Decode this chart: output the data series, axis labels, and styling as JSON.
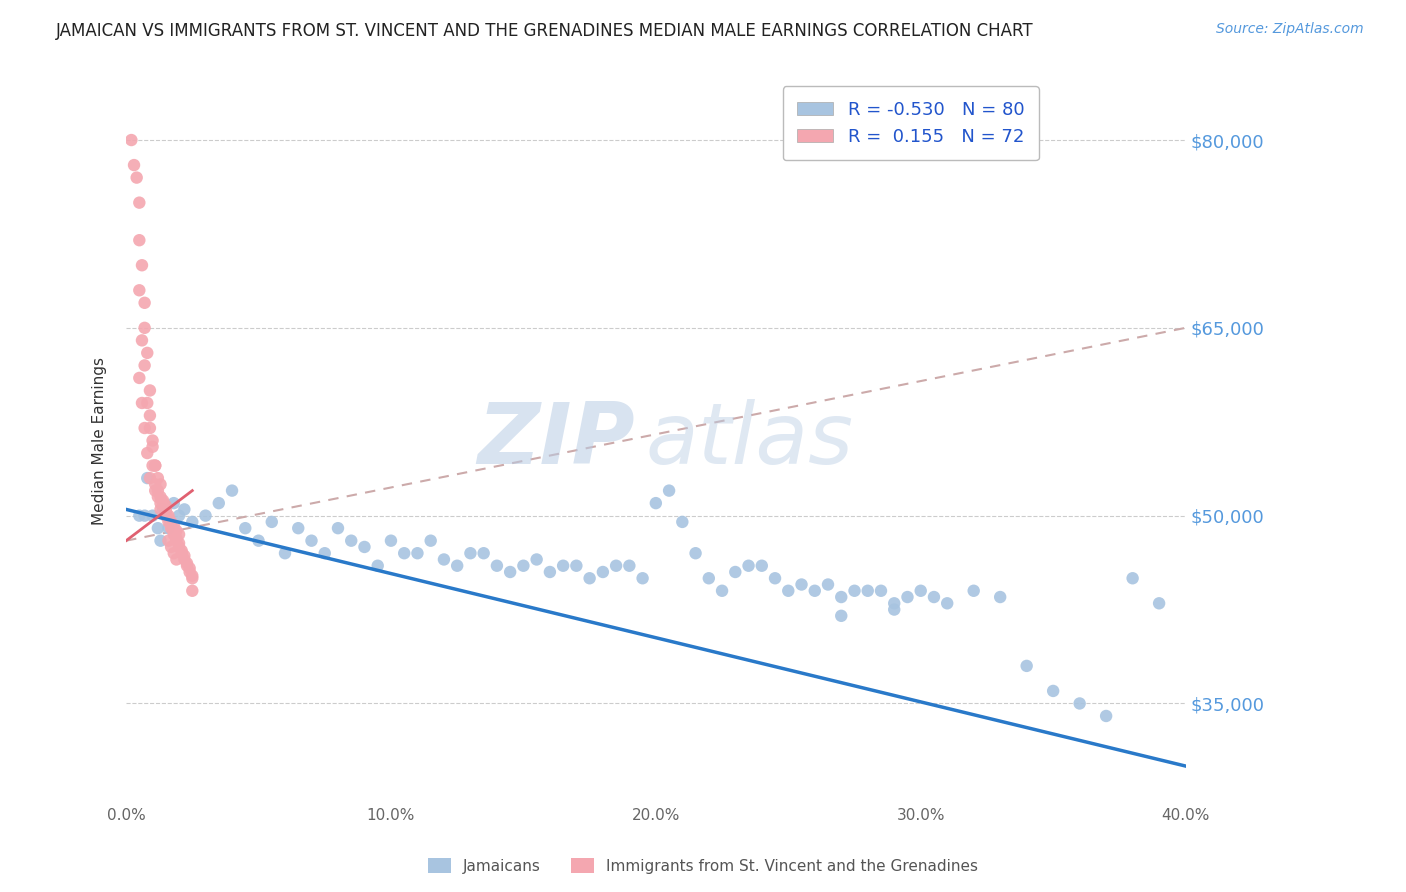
{
  "title": "JAMAICAN VS IMMIGRANTS FROM ST. VINCENT AND THE GRENADINES MEDIAN MALE EARNINGS CORRELATION CHART",
  "source": "Source: ZipAtlas.com",
  "ylabel": "Median Male Earnings",
  "xlim": [
    0.0,
    0.4
  ],
  "ylim": [
    27000,
    85000
  ],
  "yticks": [
    35000,
    50000,
    65000,
    80000
  ],
  "ytick_labels": [
    "$35,000",
    "$50,000",
    "$65,000",
    "$80,000"
  ],
  "xticks": [
    0.0,
    0.1,
    0.2,
    0.3,
    0.4
  ],
  "xtick_labels": [
    "0.0%",
    "10.0%",
    "20.0%",
    "30.0%",
    "40.0%"
  ],
  "blue_R": -0.53,
  "blue_N": 80,
  "pink_R": 0.155,
  "pink_N": 72,
  "blue_color": "#a8c4e0",
  "pink_color": "#f4a7b0",
  "trend_blue_color": "#2979c9",
  "trend_pink_color": "#e06070",
  "trend_pink_dash_color": "#ccaaaa",
  "watermark_zip": "ZIP",
  "watermark_atlas": "atlas",
  "watermark_color": "#ccd8e8",
  "legend_label_blue": "Jamaicans",
  "legend_label_pink": "Immigrants from St. Vincent and the Grenadines",
  "blue_x": [
    0.005,
    0.007,
    0.008,
    0.01,
    0.012,
    0.013,
    0.014,
    0.015,
    0.016,
    0.018,
    0.02,
    0.022,
    0.025,
    0.03,
    0.035,
    0.04,
    0.045,
    0.05,
    0.055,
    0.06,
    0.065,
    0.07,
    0.075,
    0.08,
    0.085,
    0.09,
    0.095,
    0.1,
    0.105,
    0.11,
    0.115,
    0.12,
    0.125,
    0.13,
    0.135,
    0.14,
    0.145,
    0.15,
    0.155,
    0.16,
    0.165,
    0.17,
    0.175,
    0.18,
    0.185,
    0.19,
    0.195,
    0.2,
    0.205,
    0.21,
    0.215,
    0.22,
    0.225,
    0.23,
    0.235,
    0.24,
    0.245,
    0.25,
    0.255,
    0.26,
    0.265,
    0.27,
    0.275,
    0.28,
    0.285,
    0.29,
    0.295,
    0.3,
    0.305,
    0.31,
    0.32,
    0.33,
    0.34,
    0.35,
    0.36,
    0.37,
    0.38,
    0.39,
    0.27,
    0.29
  ],
  "blue_y": [
    50000,
    50000,
    53000,
    50000,
    49000,
    48000,
    50500,
    50000,
    49000,
    51000,
    50000,
    50500,
    49500,
    50000,
    51000,
    52000,
    49000,
    48000,
    49500,
    47000,
    49000,
    48000,
    47000,
    49000,
    48000,
    47500,
    46000,
    48000,
    47000,
    47000,
    48000,
    46500,
    46000,
    47000,
    47000,
    46000,
    45500,
    46000,
    46500,
    45500,
    46000,
    46000,
    45000,
    45500,
    46000,
    46000,
    45000,
    51000,
    52000,
    49500,
    47000,
    45000,
    44000,
    45500,
    46000,
    46000,
    45000,
    44000,
    44500,
    44000,
    44500,
    43500,
    44000,
    44000,
    44000,
    43000,
    43500,
    44000,
    43500,
    43000,
    44000,
    43500,
    38000,
    36000,
    35000,
    34000,
    45000,
    43000,
    42000,
    42500
  ],
  "pink_x": [
    0.002,
    0.003,
    0.004,
    0.005,
    0.005,
    0.006,
    0.007,
    0.007,
    0.008,
    0.009,
    0.009,
    0.01,
    0.011,
    0.011,
    0.012,
    0.013,
    0.013,
    0.014,
    0.015,
    0.015,
    0.016,
    0.016,
    0.017,
    0.017,
    0.018,
    0.018,
    0.019,
    0.019,
    0.02,
    0.02,
    0.021,
    0.021,
    0.022,
    0.022,
    0.023,
    0.023,
    0.024,
    0.024,
    0.025,
    0.025,
    0.016,
    0.017,
    0.018,
    0.019,
    0.02,
    0.015,
    0.014,
    0.013,
    0.012,
    0.011,
    0.008,
    0.009,
    0.01,
    0.007,
    0.006,
    0.005,
    0.016,
    0.017,
    0.018,
    0.019,
    0.014,
    0.015,
    0.013,
    0.012,
    0.011,
    0.01,
    0.009,
    0.008,
    0.007,
    0.006,
    0.005,
    0.025
  ],
  "pink_y": [
    80000,
    78000,
    77000,
    75000,
    72000,
    70000,
    67000,
    65000,
    63000,
    60000,
    58000,
    56000,
    54000,
    52500,
    52000,
    51500,
    51000,
    51000,
    50500,
    50000,
    49800,
    49500,
    49200,
    49000,
    48800,
    48500,
    48200,
    48000,
    47800,
    47500,
    47200,
    47000,
    46800,
    46500,
    46200,
    46000,
    45800,
    45500,
    45200,
    45000,
    50000,
    49500,
    49200,
    48800,
    48500,
    50800,
    51200,
    50500,
    51500,
    52000,
    55000,
    53000,
    54000,
    57000,
    59000,
    61000,
    48000,
    47500,
    47000,
    46500,
    51000,
    50200,
    52500,
    53000,
    54000,
    55500,
    57000,
    59000,
    62000,
    64000,
    68000,
    44000
  ]
}
